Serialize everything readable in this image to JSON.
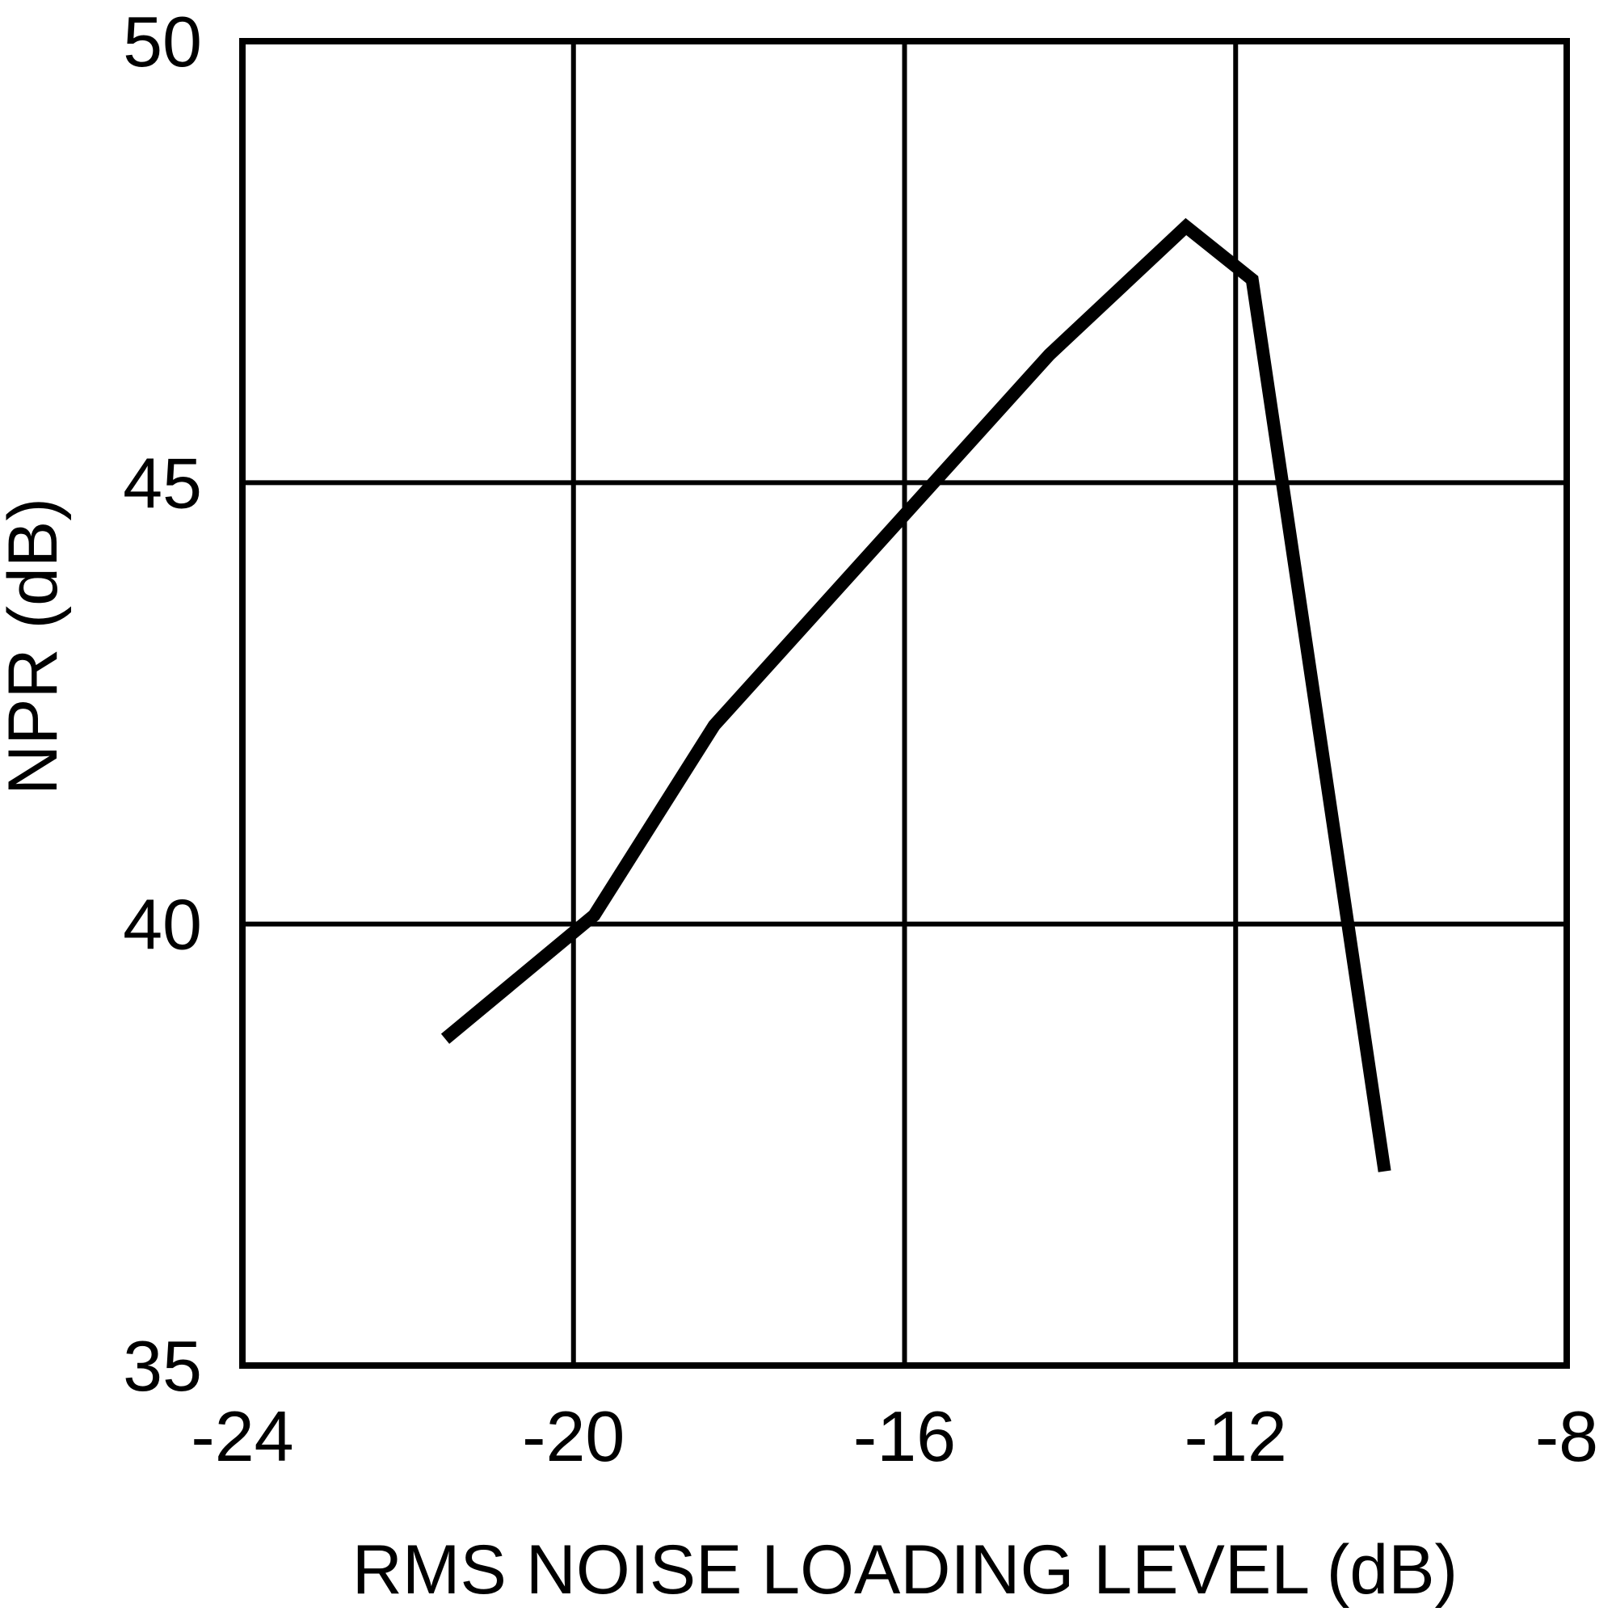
{
  "figure": {
    "background_color": "#ffffff",
    "ink_color": "#000000"
  },
  "chart_data": {
    "type": "line",
    "title": "",
    "xlabel": "RMS NOISE LOADING LEVEL (dB)",
    "ylabel": "NPR (dB)",
    "xlim": [
      -24,
      -8
    ],
    "ylim": [
      35,
      50
    ],
    "x_ticks": [
      -24,
      -20,
      -16,
      -12,
      -8
    ],
    "y_ticks": [
      35,
      40,
      45,
      50
    ],
    "grid": true,
    "legend": "none",
    "series": [
      {
        "name": "NPR",
        "color": "#000000",
        "points": [
          [
            -21.55,
            38.7
          ],
          [
            -19.75,
            40.1
          ],
          [
            -18.3,
            42.25
          ],
          [
            -14.25,
            46.45
          ],
          [
            -12.6,
            47.9
          ],
          [
            -11.8,
            47.3
          ],
          [
            -10.2,
            37.2
          ]
        ]
      }
    ]
  }
}
